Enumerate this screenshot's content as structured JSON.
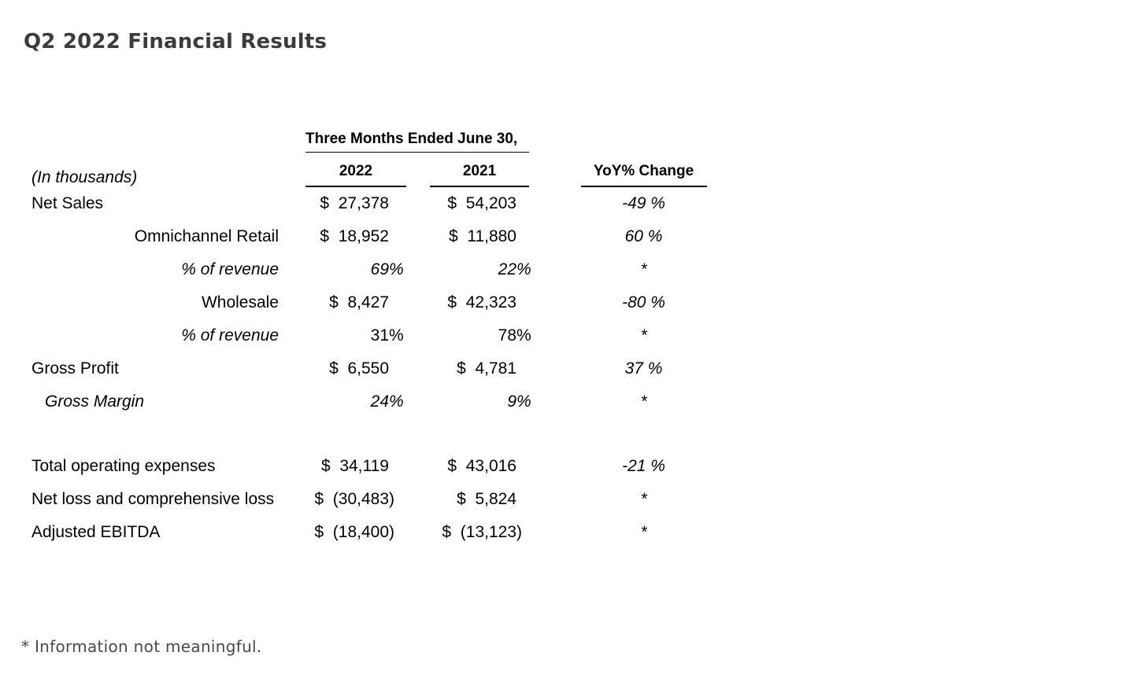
{
  "page": {
    "title": "Q2 2022 Financial Results",
    "footnote": "* Information not meaningful."
  },
  "colors": {
    "title_text": "#3b3b3b",
    "footnote_text": "#4a4a4a",
    "table_text": "#000000",
    "rule": "#000000"
  },
  "table": {
    "group_header": "Three Months Ended June 30,",
    "unit_note": "(In thousands)",
    "col_2022": "2022",
    "col_2021": "2021",
    "col_yoy": "YoY% Change",
    "rows": [
      {
        "label": "Net Sales",
        "label_align": "left",
        "v2022": {
          "cur": "$",
          "val": "27,378"
        },
        "v2021": {
          "cur": "$",
          "val": "54,203"
        },
        "yoy": "-49 %",
        "yoy_italic": true
      },
      {
        "label": "Omnichannel Retail",
        "label_align": "right",
        "v2022": {
          "cur": "$",
          "val": "18,952"
        },
        "v2021": {
          "cur": "$",
          "val": "11,880"
        },
        "yoy": "60 %",
        "yoy_italic": true
      },
      {
        "label": "% of revenue",
        "label_align": "right",
        "label_italic": true,
        "values_italic": true,
        "v2022": {
          "val": "69 %"
        },
        "v2021": {
          "val": "22 %"
        },
        "yoy": "*",
        "yoy_italic": true
      },
      {
        "label": "Wholesale",
        "label_align": "right",
        "v2022": {
          "cur": "$",
          "val": "8,427"
        },
        "v2021": {
          "cur": "$",
          "val": "42,323"
        },
        "yoy": "-80 %",
        "yoy_italic": true
      },
      {
        "label": "% of revenue",
        "label_align": "right",
        "label_italic": true,
        "values_italic": false,
        "v2022": {
          "val": "31 %"
        },
        "v2021": {
          "val": "78 %"
        },
        "yoy": "*",
        "yoy_italic": true
      },
      {
        "label": "Gross Profit",
        "label_align": "left",
        "v2022": {
          "cur": "$",
          "val": "6,550"
        },
        "v2021": {
          "cur": "$",
          "val": "4,781"
        },
        "yoy": "37 %",
        "yoy_italic": true
      },
      {
        "label": "Gross Margin",
        "label_align": "left",
        "label_indent": true,
        "label_italic": true,
        "values_italic": true,
        "v2022": {
          "val": "24 %"
        },
        "v2021": {
          "val": "9 %"
        },
        "yoy": "*",
        "yoy_italic": true
      },
      {
        "spacer": true
      },
      {
        "label": "Total operating expenses",
        "label_align": "left",
        "v2022": {
          "cur": "$",
          "val": "34,119"
        },
        "v2021": {
          "cur": "$",
          "val": "43,016"
        },
        "yoy": "-21 %",
        "yoy_italic": true
      },
      {
        "label": "Net loss and comprehensive loss",
        "label_align": "left",
        "v2022": {
          "cur": "$",
          "val": "(30,483)"
        },
        "v2021": {
          "cur": "$",
          "val": "5,824"
        },
        "yoy": "*",
        "yoy_italic": true
      },
      {
        "label": "Adjusted EBITDA",
        "label_align": "left",
        "v2022": {
          "cur": "$",
          "val": "(18,400)"
        },
        "v2021": {
          "cur": "$",
          "val": "(13,123)"
        },
        "yoy": "*",
        "yoy_italic": true
      }
    ]
  }
}
